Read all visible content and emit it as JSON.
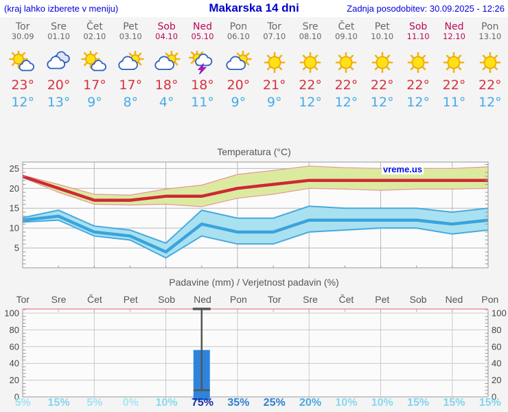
{
  "header": {
    "hint": "(kraj lahko izberete v meniju)",
    "title": "Makarska 14 dni",
    "updated": "Zadnja posodobitev: 30.09.2025 - 12:26"
  },
  "watermark": "vreme.us",
  "colors": {
    "weekday": "#666666",
    "weekend": "#bb0658",
    "high_temp": "#d9303e",
    "low_temp": "#45abe8",
    "header_blue": "#0000dd"
  },
  "days": [
    {
      "name": "Tor",
      "date": "30.09",
      "weekend": false,
      "icon": "sun-cloud",
      "high": "23°",
      "low": "12°"
    },
    {
      "name": "Sre",
      "date": "01.10",
      "weekend": false,
      "icon": "cloudy",
      "high": "20°",
      "low": "13°"
    },
    {
      "name": "Čet",
      "date": "02.10",
      "weekend": false,
      "icon": "sun-cloud",
      "high": "17°",
      "low": "9°"
    },
    {
      "name": "Pet",
      "date": "03.10",
      "weekend": false,
      "icon": "cloud-sun",
      "high": "17°",
      "low": "8°"
    },
    {
      "name": "Sob",
      "date": "04.10",
      "weekend": true,
      "icon": "cloud-sun",
      "high": "18°",
      "low": "4°"
    },
    {
      "name": "Ned",
      "date": "05.10",
      "weekend": true,
      "icon": "thunder",
      "high": "18°",
      "low": "11°"
    },
    {
      "name": "Pon",
      "date": "06.10",
      "weekend": false,
      "icon": "cloud-sun",
      "high": "20°",
      "low": "9°"
    },
    {
      "name": "Tor",
      "date": "07.10",
      "weekend": false,
      "icon": "sun",
      "high": "21°",
      "low": "9°"
    },
    {
      "name": "Sre",
      "date": "08.10",
      "weekend": false,
      "icon": "sun",
      "high": "22°",
      "low": "12°"
    },
    {
      "name": "Čet",
      "date": "09.10",
      "weekend": false,
      "icon": "sun",
      "high": "22°",
      "low": "12°"
    },
    {
      "name": "Pet",
      "date": "10.10",
      "weekend": false,
      "icon": "sun",
      "high": "22°",
      "low": "12°"
    },
    {
      "name": "Sob",
      "date": "11.10",
      "weekend": true,
      "icon": "sun",
      "high": "22°",
      "low": "12°"
    },
    {
      "name": "Ned",
      "date": "12.10",
      "weekend": true,
      "icon": "sun",
      "high": "22°",
      "low": "11°"
    },
    {
      "name": "Pon",
      "date": "13.10",
      "weekend": false,
      "icon": "sun",
      "high": "22°",
      "low": "12°"
    }
  ],
  "chart_data": [
    {
      "type": "line",
      "title": "Temperatura (°C)",
      "categories": [
        "Tor",
        "Sre",
        "Čet",
        "Pet",
        "Sob",
        "Ned",
        "Pon",
        "Tor",
        "Sre",
        "Čet",
        "Pet",
        "Sob",
        "Ned",
        "Pon"
      ],
      "ylim": [
        0,
        26.6
      ],
      "yticks": [
        5,
        10,
        15,
        20,
        25
      ],
      "grid": true,
      "legend": "none",
      "series": [
        {
          "name": "max_temp",
          "color": "#cc2936",
          "values": [
            23,
            20,
            17,
            17,
            18,
            18,
            20,
            21,
            22,
            22,
            22,
            22,
            22,
            22
          ]
        },
        {
          "name": "max_range_top",
          "values": [
            23.3,
            21,
            18.5,
            18.3,
            19.8,
            20.8,
            23.5,
            24.5,
            25.6,
            25.2,
            25,
            25,
            25,
            25.4
          ]
        },
        {
          "name": "max_range_bottom",
          "values": [
            22.7,
            19,
            16,
            15.8,
            16,
            15.4,
            17.5,
            18.5,
            20,
            19.8,
            19.5,
            19.8,
            19.8,
            20
          ]
        },
        {
          "name": "min_temp",
          "color": "#3aa3dc",
          "values": [
            12,
            13,
            9,
            8,
            4,
            11,
            9,
            9,
            12,
            12,
            12,
            12,
            11,
            12
          ]
        },
        {
          "name": "min_range_top",
          "values": [
            12.6,
            14.5,
            10.5,
            9.5,
            6.2,
            14.5,
            12.5,
            12.5,
            15.5,
            15,
            15,
            15,
            14,
            15
          ]
        },
        {
          "name": "min_range_bottom",
          "values": [
            11.5,
            12,
            8,
            7,
            2.5,
            8,
            6,
            6,
            9,
            9.5,
            10,
            10,
            8.5,
            9.5
          ]
        }
      ],
      "band_colors": {
        "max_fill": "#dcea9f",
        "max_edge": "#e59599",
        "min_fill": "#a9e1f1",
        "min_edge": "#46aadf"
      }
    },
    {
      "type": "bar",
      "title": "Padavine (mm) / Verjetnost padavin (%)",
      "categories": [
        "Tor",
        "Sre",
        "Čet",
        "Pet",
        "Sob",
        "Ned",
        "Pon",
        "Tor",
        "Sre",
        "Čet",
        "Pet",
        "Sob",
        "Ned",
        "Pon"
      ],
      "ylim": [
        0,
        105
      ],
      "yticks": [
        0,
        20,
        40,
        60,
        80,
        100
      ],
      "bar_color": "#2e84dc",
      "values": [
        0,
        0,
        0,
        0,
        0,
        56,
        0,
        0,
        0,
        0,
        0,
        0,
        0,
        0
      ],
      "whisker_low": [
        null,
        null,
        null,
        null,
        null,
        8,
        null,
        null,
        null,
        null,
        null,
        null,
        null,
        null
      ],
      "whisker_high": [
        null,
        null,
        null,
        null,
        null,
        105,
        null,
        null,
        null,
        null,
        null,
        null,
        null,
        null
      ],
      "probabilities": [
        {
          "label": "5%",
          "color": "#a2e0f4"
        },
        {
          "label": "15%",
          "color": "#82d4ee"
        },
        {
          "label": "5%",
          "color": "#a2e0f4"
        },
        {
          "label": "0%",
          "color": "#ace4f5"
        },
        {
          "label": "10%",
          "color": "#8ad8f0"
        },
        {
          "label": "75%",
          "color": "#1b2fa8"
        },
        {
          "label": "35%",
          "color": "#2d7fd2"
        },
        {
          "label": "25%",
          "color": "#2d7fd2"
        },
        {
          "label": "20%",
          "color": "#49a9de"
        },
        {
          "label": "10%",
          "color": "#8ad8f0"
        },
        {
          "label": "10%",
          "color": "#8ad8f0"
        },
        {
          "label": "15%",
          "color": "#82d4ee"
        },
        {
          "label": "15%",
          "color": "#82d4ee"
        },
        {
          "label": "15%",
          "color": "#82d4ee"
        }
      ]
    }
  ]
}
